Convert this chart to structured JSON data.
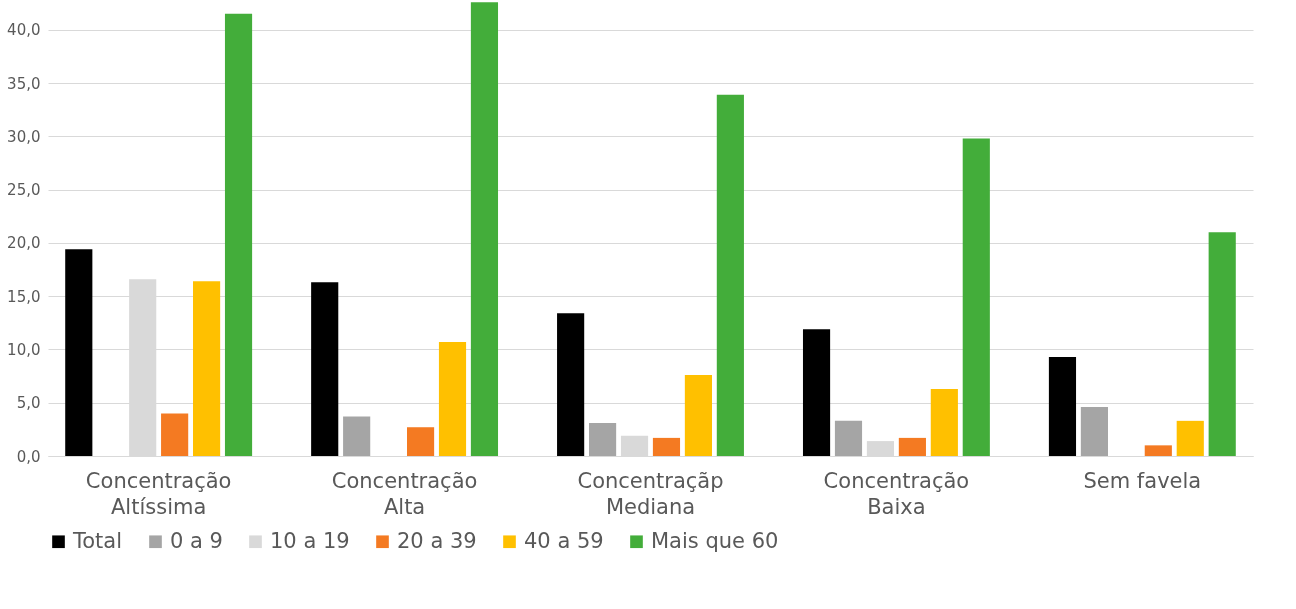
{
  "chart_data": {
    "type": "bar",
    "categories": [
      "Concentração\nAltíssima",
      "Concentração\nAlta",
      "Concentraçãp\nMediana",
      "Concentração\nBaixa",
      "Sem favela"
    ],
    "series": [
      {
        "name": "Total",
        "color": "#000000",
        "values": [
          19.4,
          16.3,
          13.4,
          11.9,
          9.3
        ]
      },
      {
        "name": "0 a 9",
        "color": "#a5a5a5",
        "values": [
          null,
          3.7,
          3.1,
          3.3,
          4.6
        ]
      },
      {
        "name": "10 a 19",
        "color": "#d9d9d9",
        "values": [
          16.6,
          null,
          1.9,
          1.4,
          null
        ]
      },
      {
        "name": "20 a 39",
        "color": "#f47a22",
        "values": [
          4.0,
          2.7,
          1.7,
          1.7,
          1.0
        ]
      },
      {
        "name": "40 a 59",
        "color": "#ffc000",
        "values": [
          16.4,
          10.7,
          7.6,
          6.3,
          3.3
        ]
      },
      {
        "name": "Mais que 60",
        "color": "#43ad3a",
        "values": [
          41.5,
          42.6,
          33.9,
          29.8,
          21.0
        ]
      }
    ],
    "ylim": [
      0,
      42.8
    ],
    "yticks": [
      {
        "value": 0,
        "label": "0,0"
      },
      {
        "value": 5,
        "label": "5,0"
      },
      {
        "value": 10,
        "label": "10,0"
      },
      {
        "value": 15,
        "label": "15,0"
      },
      {
        "value": 20,
        "label": "20,0"
      },
      {
        "value": 25,
        "label": "25,0"
      },
      {
        "value": 30,
        "label": "30,0"
      },
      {
        "value": 35,
        "label": "35,0"
      },
      {
        "value": 40,
        "label": "40,0"
      }
    ],
    "grid": "y",
    "legend": "bottom"
  }
}
